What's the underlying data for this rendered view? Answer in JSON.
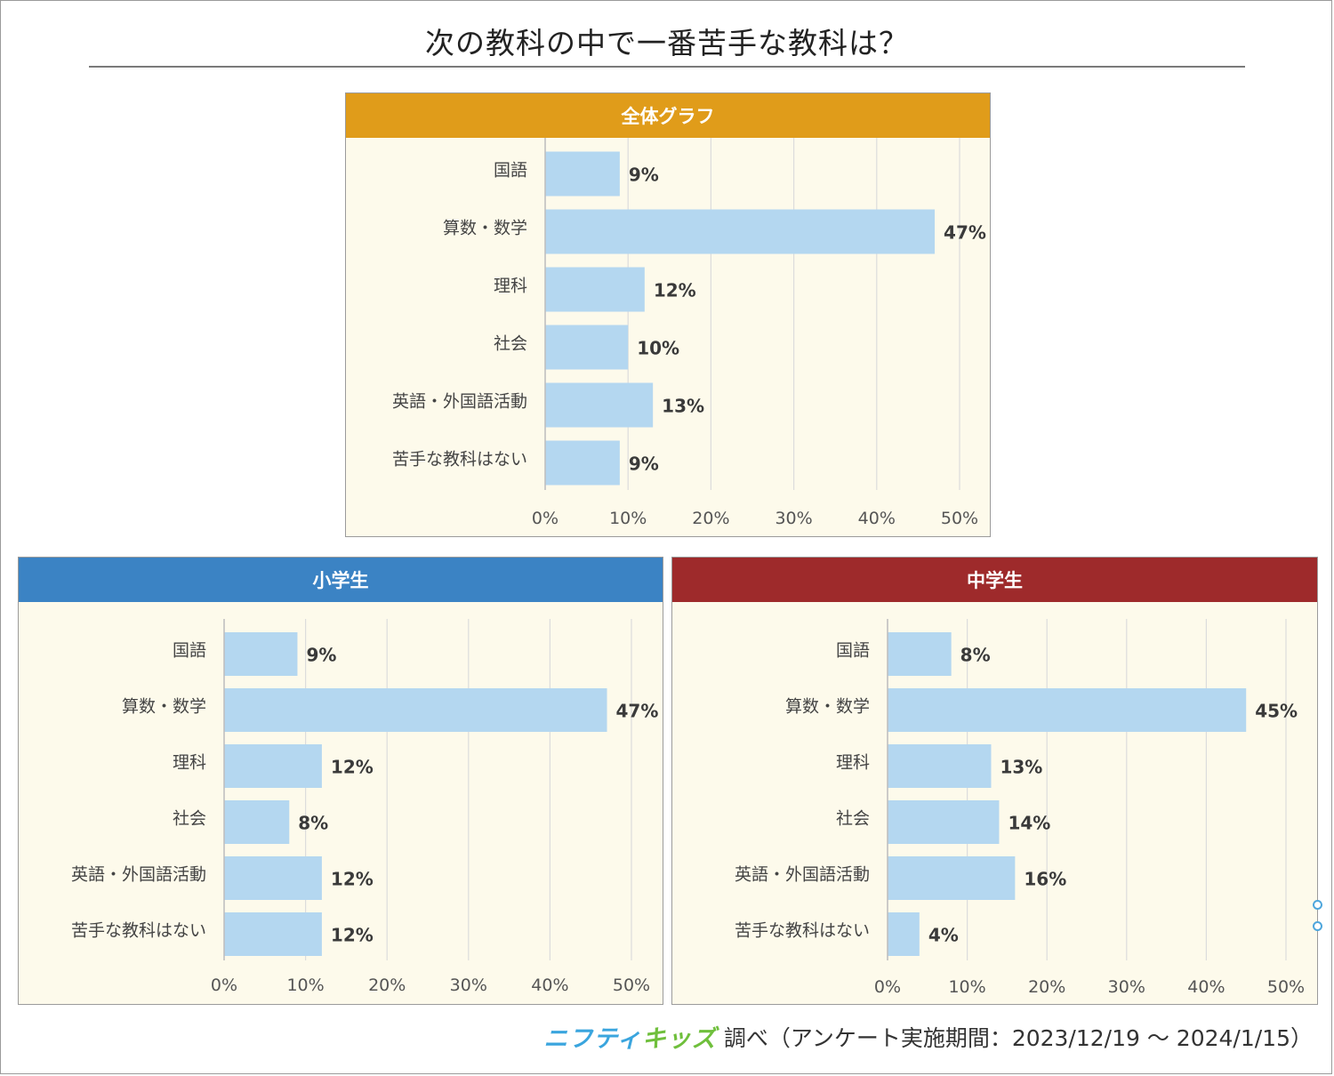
{
  "title": "次の教科の中で一番苦手な教科は？",
  "colors": {
    "bar": "#b4d7f0",
    "grid": "#dcdcdc",
    "panel_bg": "#fdfaeb",
    "header_overall": "#e09c1a",
    "header_elementary": "#3b83c4",
    "header_junior": "#9e2a2b"
  },
  "chart_data": [
    {
      "type": "bar",
      "orientation": "horizontal",
      "title": "全体グラフ",
      "categories": [
        "国語",
        "算数・数学",
        "理科",
        "社会",
        "英語・外国語活動",
        "苦手な教科はない"
      ],
      "values": [
        9,
        47,
        12,
        10,
        13,
        9
      ],
      "value_labels": [
        "9%",
        "47%",
        "12%",
        "10%",
        "13%",
        "9%"
      ],
      "xlim": [
        0,
        50
      ],
      "xticks": [
        "0%",
        "10%",
        "20%",
        "30%",
        "40%",
        "50%"
      ],
      "grid": true
    },
    {
      "type": "bar",
      "orientation": "horizontal",
      "title": "小学生",
      "categories": [
        "国語",
        "算数・数学",
        "理科",
        "社会",
        "英語・外国語活動",
        "苦手な教科はない"
      ],
      "values": [
        9,
        47,
        12,
        8,
        12,
        12
      ],
      "value_labels": [
        "9%",
        "47%",
        "12%",
        "8%",
        "12%",
        "12%"
      ],
      "xlim": [
        0,
        50
      ],
      "xticks": [
        "0%",
        "10%",
        "20%",
        "30%",
        "40%",
        "50%"
      ],
      "grid": true
    },
    {
      "type": "bar",
      "orientation": "horizontal",
      "title": "中学生",
      "categories": [
        "国語",
        "算数・数学",
        "理科",
        "社会",
        "英語・外国語活動",
        "苦手な教科はない"
      ],
      "values": [
        8,
        45,
        13,
        14,
        16,
        4
      ],
      "value_labels": [
        "8%",
        "45%",
        "13%",
        "14%",
        "16%",
        "4%"
      ],
      "xlim": [
        0,
        50
      ],
      "xticks": [
        "0%",
        "10%",
        "20%",
        "30%",
        "40%",
        "50%"
      ],
      "grid": true
    }
  ],
  "footer": {
    "logo_part1": "ニフティ",
    "logo_part2": "キッズ",
    "text": "調べ（アンケート実施期間：2023/12/19 〜 2024/1/15）"
  }
}
